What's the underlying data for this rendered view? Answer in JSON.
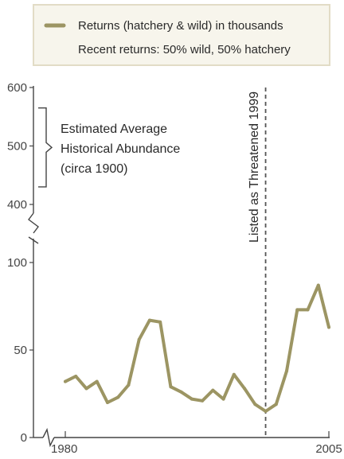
{
  "legend": {
    "line1": "Returns (hatchery & wild) in thousands",
    "line2": "Recent returns:  50% wild, 50% hatchery"
  },
  "annotations": {
    "historical_line1": "Estimated Average",
    "historical_line2": "Historical Abundance",
    "historical_line3": "(circa 1900)",
    "listed": "Listed as Threatened 1999"
  },
  "colors": {
    "series": "#9c9563",
    "axis": "#444444",
    "legend_bg": "#f7f5ec",
    "legend_border": "#e2dcc6",
    "vline": "#555555"
  },
  "chart_data": {
    "type": "line",
    "title": "",
    "xlabel": "",
    "ylabel": "",
    "x_ticks": [
      "1980",
      "2005"
    ],
    "y_ticks_upper": [
      "600",
      "500",
      "400"
    ],
    "y_ticks_lower": [
      "100",
      "50",
      "0"
    ],
    "broken_y_axis": true,
    "ylim_lower": [
      0,
      100
    ],
    "ylim_upper": [
      400,
      600
    ],
    "historical_range": [
      430,
      565
    ],
    "listed_year": 1999,
    "series": [
      {
        "name": "Returns (hatchery & wild) in thousands",
        "x": [
          1980,
          1981,
          1982,
          1983,
          1984,
          1985,
          1986,
          1987,
          1988,
          1989,
          1990,
          1991,
          1992,
          1993,
          1994,
          1995,
          1996,
          1997,
          1998,
          1999,
          2000,
          2001,
          2002,
          2003,
          2004,
          2005
        ],
        "values": [
          32,
          35,
          28,
          32,
          20,
          23,
          30,
          56,
          67,
          66,
          29,
          26,
          22,
          21,
          27,
          22,
          36,
          28,
          19,
          15,
          19,
          38,
          73,
          73,
          87,
          63
        ]
      }
    ]
  }
}
